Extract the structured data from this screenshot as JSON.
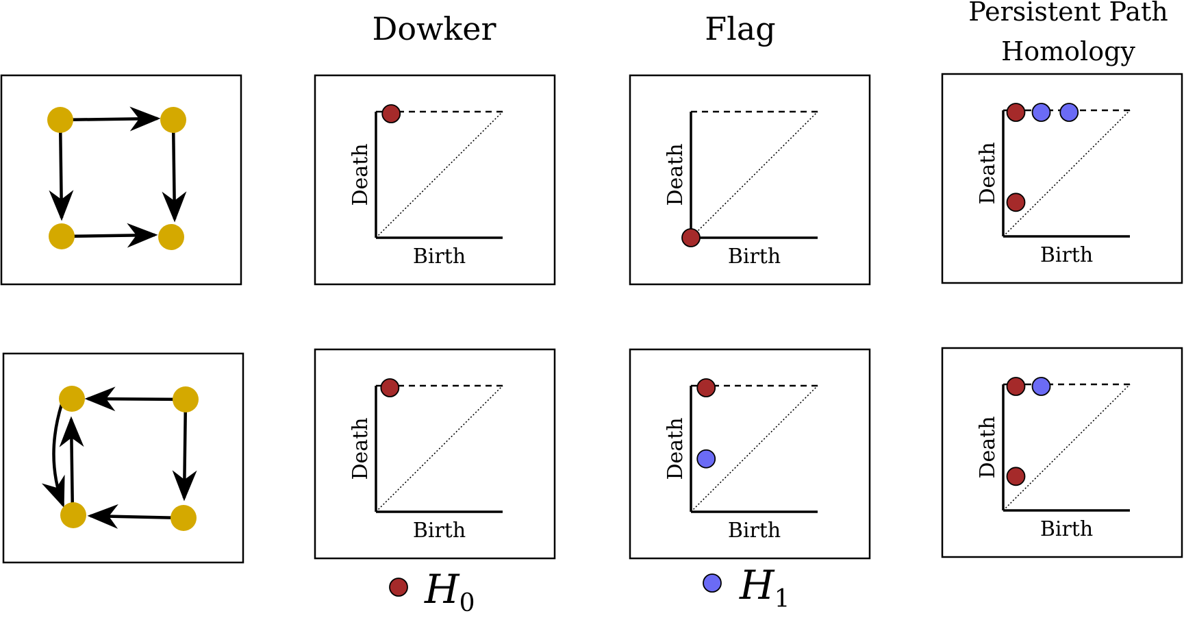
{
  "columns": [
    {
      "key": "dowker",
      "title": "Dowker"
    },
    {
      "key": "flag",
      "title": "Flag"
    },
    {
      "key": "pph",
      "title_lines": [
        "Persistent Path",
        "Homology"
      ]
    }
  ],
  "axes": {
    "xlabel": "Birth",
    "ylabel": "Death"
  },
  "colors": {
    "node": "#d4a900",
    "h0": "#a52a2a",
    "h1": "#6b6bf5",
    "edge": "#000000"
  },
  "legend": [
    {
      "key": "h0",
      "symbol": "H",
      "subscript": "0"
    },
    {
      "key": "h1",
      "symbol": "H",
      "subscript": "1"
    }
  ],
  "chart_data": [
    {
      "row": 1,
      "method": "Dowker",
      "type": "scatter",
      "points": [
        {
          "dim": "H0",
          "birth": 0.12,
          "death": "inf"
        }
      ]
    },
    {
      "row": 1,
      "method": "Flag",
      "type": "scatter",
      "points": [
        {
          "dim": "H0",
          "birth": 0.0,
          "death": 0.0
        }
      ]
    },
    {
      "row": 1,
      "method": "Persistent Path Homology",
      "type": "scatter",
      "points": [
        {
          "dim": "H0",
          "birth": 0.1,
          "death": "inf"
        },
        {
          "dim": "H1",
          "birth": 0.3,
          "death": "inf"
        },
        {
          "dim": "H1",
          "birth": 0.52,
          "death": "inf"
        },
        {
          "dim": "H0",
          "birth": 0.1,
          "death": 0.27
        }
      ]
    },
    {
      "row": 2,
      "method": "Dowker",
      "type": "scatter",
      "points": [
        {
          "dim": "H0",
          "birth": 0.11,
          "death": "inf"
        }
      ]
    },
    {
      "row": 2,
      "method": "Flag",
      "type": "scatter",
      "points": [
        {
          "dim": "H0",
          "birth": 0.12,
          "death": "inf"
        },
        {
          "dim": "H1",
          "birth": 0.12,
          "death": 0.42
        }
      ]
    },
    {
      "row": 2,
      "method": "Persistent Path Homology",
      "type": "scatter",
      "points": [
        {
          "dim": "H0",
          "birth": 0.1,
          "death": "inf"
        },
        {
          "dim": "H1",
          "birth": 0.3,
          "death": "inf"
        },
        {
          "dim": "H0",
          "birth": 0.1,
          "death": 0.27
        }
      ]
    }
  ]
}
